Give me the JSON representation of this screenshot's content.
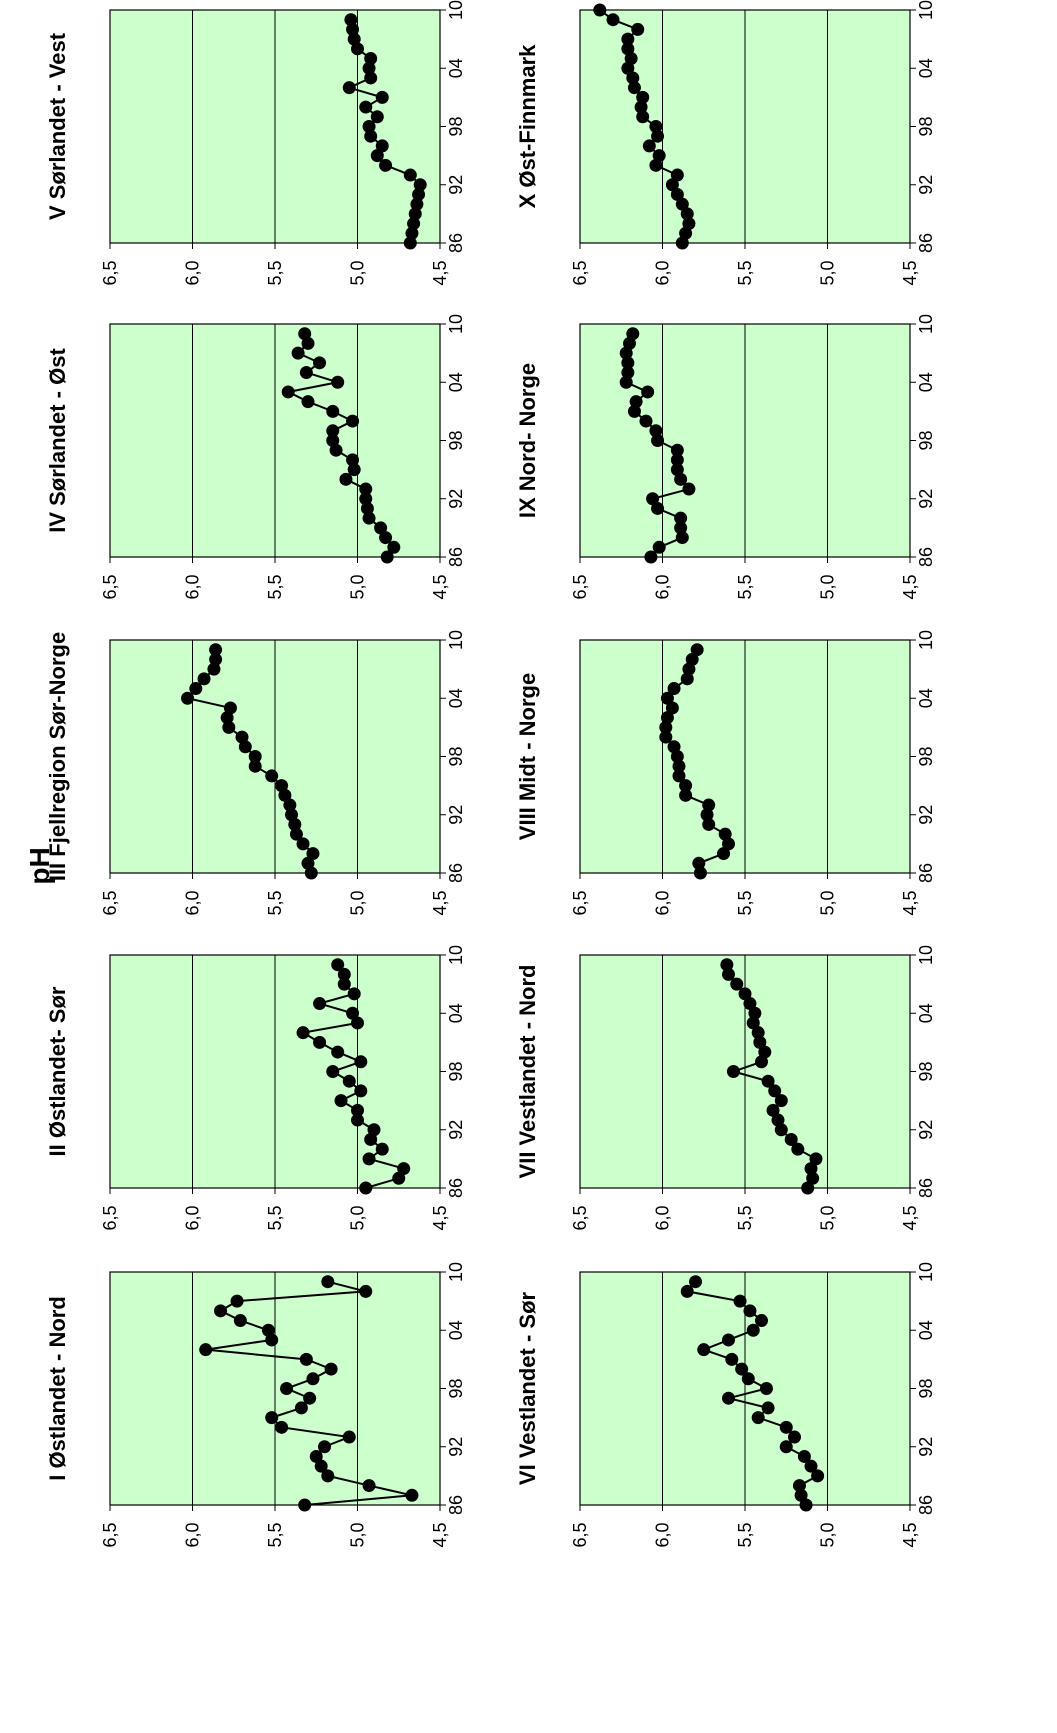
{
  "page": {
    "title": "pH"
  },
  "chart_data": [
    {
      "type": "line",
      "title": "I Østlandet - Nord",
      "x": [
        "86",
        "87",
        "88",
        "89",
        "90",
        "91",
        "92",
        "93",
        "94",
        "95",
        "96",
        "97",
        "98",
        "99",
        "00",
        "01",
        "02",
        "03",
        "04",
        "05",
        "06",
        "07",
        "08",
        "09",
        "10"
      ],
      "values": [
        5.32,
        4.67,
        4.93,
        5.18,
        5.22,
        5.25,
        5.2,
        5.05,
        5.46,
        5.52,
        5.34,
        5.29,
        5.43,
        5.27,
        5.16,
        5.31,
        5.92,
        5.52,
        5.54,
        5.71,
        5.83,
        5.73,
        4.95,
        5.18,
        null
      ],
      "x_tick_labels": [
        "86",
        "92",
        "98",
        "04",
        "10"
      ],
      "y_tick_labels": [
        "6,5",
        "6,0",
        "5,5",
        "5,0",
        "4,5"
      ],
      "ylim": [
        4.5,
        6.5
      ],
      "grid": true
    },
    {
      "type": "line",
      "title": "II Østlandet- Sør",
      "x": [
        "86",
        "87",
        "88",
        "89",
        "90",
        "91",
        "92",
        "93",
        "94",
        "95",
        "96",
        "97",
        "98",
        "99",
        "00",
        "01",
        "02",
        "03",
        "04",
        "05",
        "06",
        "07",
        "08",
        "09",
        "10"
      ],
      "values": [
        4.95,
        4.75,
        4.72,
        4.93,
        4.85,
        4.92,
        4.9,
        5.0,
        5.0,
        5.1,
        4.98,
        5.05,
        5.15,
        4.98,
        5.12,
        5.23,
        5.33,
        5.0,
        5.03,
        5.23,
        5.02,
        5.08,
        5.08,
        5.12,
        null
      ],
      "x_tick_labels": [
        "86",
        "92",
        "98",
        "04",
        "10"
      ],
      "y_tick_labels": [
        "6,5",
        "6,0",
        "5,5",
        "5,0",
        "4,5"
      ],
      "ylim": [
        4.5,
        6.5
      ],
      "grid": true
    },
    {
      "type": "line",
      "title": "III Fjellregion Sør-Norge",
      "x": [
        "86",
        "87",
        "88",
        "89",
        "90",
        "91",
        "92",
        "93",
        "94",
        "95",
        "96",
        "97",
        "98",
        "99",
        "00",
        "01",
        "02",
        "03",
        "04",
        "05",
        "06",
        "07",
        "08",
        "09",
        "10"
      ],
      "values": [
        5.28,
        5.3,
        5.27,
        5.33,
        5.37,
        5.38,
        5.4,
        5.41,
        5.44,
        5.46,
        5.52,
        5.62,
        5.62,
        5.68,
        5.7,
        5.78,
        5.79,
        5.77,
        6.03,
        5.98,
        5.93,
        5.87,
        5.86,
        5.86,
        null
      ],
      "x_tick_labels": [
        "86",
        "92",
        "98",
        "04",
        "10"
      ],
      "y_tick_labels": [
        "6,5",
        "6,0",
        "5,5",
        "5,0",
        "4,5"
      ],
      "ylim": [
        4.5,
        6.5
      ],
      "grid": true
    },
    {
      "type": "line",
      "title": "IV Sørlandet - Øst",
      "x": [
        "86",
        "87",
        "88",
        "89",
        "90",
        "91",
        "92",
        "93",
        "94",
        "95",
        "96",
        "97",
        "98",
        "99",
        "00",
        "01",
        "02",
        "03",
        "04",
        "05",
        "06",
        "07",
        "08",
        "09",
        "10"
      ],
      "values": [
        4.82,
        4.78,
        4.83,
        4.86,
        4.93,
        4.94,
        4.95,
        4.95,
        5.07,
        5.02,
        5.03,
        5.13,
        5.15,
        5.15,
        5.03,
        5.15,
        5.3,
        5.42,
        5.12,
        5.31,
        5.23,
        5.36,
        5.3,
        5.32,
        null
      ],
      "x_tick_labels": [
        "86",
        "92",
        "98",
        "04",
        "10"
      ],
      "y_tick_labels": [
        "6,5",
        "6,0",
        "5,5",
        "5,0",
        "4,5"
      ],
      "ylim": [
        4.5,
        6.5
      ],
      "grid": true
    },
    {
      "type": "line",
      "title": "V Sørlandet - Vest",
      "x": [
        "86",
        "87",
        "88",
        "89",
        "90",
        "91",
        "92",
        "93",
        "94",
        "95",
        "96",
        "97",
        "98",
        "99",
        "00",
        "01",
        "02",
        "03",
        "04",
        "05",
        "06",
        "07",
        "08",
        "09",
        "10"
      ],
      "values": [
        4.68,
        4.67,
        4.66,
        4.65,
        4.64,
        4.63,
        4.62,
        4.68,
        4.83,
        4.88,
        4.85,
        4.92,
        4.93,
        4.88,
        4.95,
        4.85,
        5.05,
        4.92,
        4.93,
        4.92,
        5.0,
        5.02,
        5.03,
        5.04,
        null
      ],
      "x_tick_labels": [
        "86",
        "92",
        "98",
        "04",
        "10"
      ],
      "y_tick_labels": [
        "6,5",
        "6,0",
        "5,5",
        "5,0",
        "4,5"
      ],
      "ylim": [
        4.5,
        6.5
      ],
      "grid": true
    },
    {
      "type": "line",
      "title": "VI Vestlandet - Sør",
      "x": [
        "86",
        "87",
        "88",
        "89",
        "90",
        "91",
        "92",
        "93",
        "94",
        "95",
        "96",
        "97",
        "98",
        "99",
        "00",
        "01",
        "02",
        "03",
        "04",
        "05",
        "06",
        "07",
        "08",
        "09",
        "10"
      ],
      "values": [
        5.13,
        5.16,
        5.17,
        5.06,
        5.1,
        5.14,
        5.25,
        5.2,
        5.25,
        5.42,
        5.36,
        5.6,
        5.37,
        5.48,
        5.52,
        5.58,
        5.75,
        5.6,
        5.45,
        5.4,
        5.47,
        5.53,
        5.85,
        5.8,
        null
      ],
      "x_tick_labels": [
        "86",
        "92",
        "98",
        "04",
        "10"
      ],
      "y_tick_labels": [
        "6,5",
        "6,0",
        "5,5",
        "5,0",
        "4,5"
      ],
      "ylim": [
        4.5,
        6.5
      ],
      "grid": true
    },
    {
      "type": "line",
      "title": "VII Vestlandet - Nord",
      "x": [
        "86",
        "87",
        "88",
        "89",
        "90",
        "91",
        "92",
        "93",
        "94",
        "95",
        "96",
        "97",
        "98",
        "99",
        "00",
        "01",
        "02",
        "03",
        "04",
        "05",
        "06",
        "07",
        "08",
        "09",
        "10"
      ],
      "values": [
        5.12,
        5.09,
        5.1,
        5.07,
        5.18,
        5.22,
        5.28,
        5.3,
        5.33,
        5.28,
        5.32,
        5.36,
        5.57,
        5.4,
        5.38,
        5.41,
        5.42,
        5.45,
        5.44,
        5.47,
        5.5,
        5.55,
        5.6,
        5.61,
        null
      ],
      "x_tick_labels": [
        "86",
        "92",
        "98",
        "04",
        "10"
      ],
      "y_tick_labels": [
        "6,5",
        "6,0",
        "5,5",
        "5,0",
        "4,5"
      ],
      "ylim": [
        4.5,
        6.5
      ],
      "grid": true
    },
    {
      "type": "line",
      "title": "VIII Midt - Norge",
      "x": [
        "86",
        "87",
        "88",
        "89",
        "90",
        "91",
        "92",
        "93",
        "94",
        "95",
        "96",
        "97",
        "98",
        "99",
        "00",
        "01",
        "02",
        "03",
        "04",
        "05",
        "06",
        "07",
        "08",
        "09",
        "10"
      ],
      "values": [
        5.77,
        5.78,
        5.63,
        5.6,
        5.62,
        5.72,
        5.73,
        5.72,
        5.86,
        5.86,
        5.9,
        5.9,
        5.91,
        5.93,
        5.98,
        5.98,
        5.97,
        5.94,
        5.97,
        5.93,
        5.85,
        5.84,
        5.82,
        5.79,
        null
      ],
      "x_tick_labels": [
        "86",
        "92",
        "98",
        "04",
        "10"
      ],
      "y_tick_labels": [
        "6,5",
        "6,0",
        "5,5",
        "5,0",
        "4,5"
      ],
      "ylim": [
        4.5,
        6.5
      ],
      "grid": true
    },
    {
      "type": "line",
      "title": "IX Nord- Norge",
      "x": [
        "86",
        "87",
        "88",
        "89",
        "90",
        "91",
        "92",
        "93",
        "94",
        "95",
        "96",
        "97",
        "98",
        "99",
        "00",
        "01",
        "02",
        "03",
        "04",
        "05",
        "06",
        "07",
        "08",
        "09",
        "10"
      ],
      "values": [
        6.07,
        6.02,
        5.88,
        5.89,
        5.89,
        6.03,
        6.06,
        5.84,
        5.89,
        5.91,
        5.91,
        5.91,
        6.03,
        6.04,
        6.1,
        6.17,
        6.16,
        6.09,
        6.22,
        6.21,
        6.21,
        6.22,
        6.2,
        6.18,
        null
      ],
      "x_tick_labels": [
        "86",
        "92",
        "98",
        "04",
        "10"
      ],
      "y_tick_labels": [
        "6,5",
        "6,0",
        "5,5",
        "5,0",
        "4,5"
      ],
      "ylim": [
        4.5,
        6.5
      ],
      "grid": true
    },
    {
      "type": "line",
      "title": "X Øst-Finnmark",
      "x": [
        "86",
        "87",
        "88",
        "89",
        "90",
        "91",
        "92",
        "93",
        "94",
        "95",
        "96",
        "97",
        "98",
        "99",
        "00",
        "01",
        "02",
        "03",
        "04",
        "05",
        "06",
        "07",
        "08",
        "09",
        "10"
      ],
      "values": [
        5.88,
        5.86,
        5.84,
        5.85,
        5.88,
        5.91,
        5.94,
        5.91,
        6.04,
        6.02,
        6.08,
        6.03,
        6.04,
        6.12,
        6.13,
        6.12,
        6.17,
        6.18,
        6.21,
        6.19,
        6.21,
        6.21,
        6.15,
        6.3,
        6.38
      ],
      "x_tick_labels": [
        "86",
        "92",
        "98",
        "04",
        "10"
      ],
      "y_tick_labels": [
        "6,5",
        "6,0",
        "5,5",
        "5,0",
        "4,5"
      ],
      "ylim": [
        4.5,
        6.5
      ],
      "grid": true
    }
  ]
}
